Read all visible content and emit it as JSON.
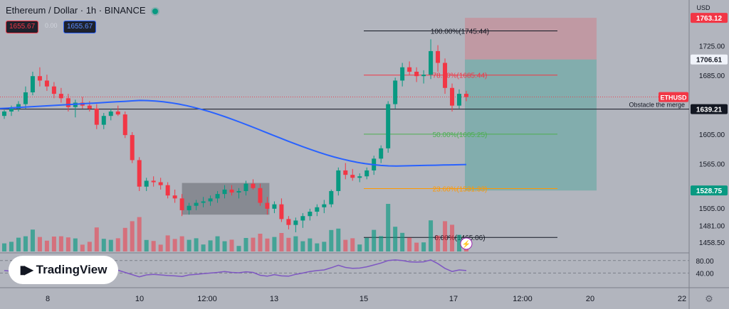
{
  "header": {
    "title": "Ethereum / Dollar · 1h · BINANCE",
    "sell_price": "1655.67",
    "spread": "0.00",
    "buy_price": "1655.67"
  },
  "logo": {
    "text": "TradingView",
    "mark": "TV"
  },
  "currency_label": "USD",
  "symbol_tag": "ETHUSD",
  "price_scale_labels": [
    "1725.00",
    "1685.00",
    "1605.00",
    "1565.00",
    "1505.00",
    "1481.00",
    "1458.50"
  ],
  "price_badges": [
    {
      "text": "1763.12",
      "value": 1763.12,
      "bg": "#f23645",
      "color": "#ffffff"
    },
    {
      "text": "1706.61",
      "value": 1706.61,
      "bg": "#f0f3fa",
      "color": "#131722"
    },
    {
      "text": "1639.21",
      "value": 1639.21,
      "bg": "#131722",
      "color": "#ffffff"
    },
    {
      "text": "1528.75",
      "value": 1528.75,
      "bg": "#089981",
      "color": "#ffffff"
    }
  ],
  "annotations": [
    {
      "text": "Obstacle the merge",
      "value": 1639.21
    }
  ],
  "rsi_scale_labels": [
    "80.00",
    "40.00"
  ],
  "time_labels": [
    "8",
    "10",
    "12:00",
    "13",
    "15",
    "17",
    "12:00",
    "20",
    "22"
  ],
  "colors": {
    "background": "#b2b5be",
    "up": "#089981",
    "down": "#f23645",
    "ma": "#2962ff",
    "rsi": "#7e57c2"
  },
  "chart_data": {
    "type": "candlestick",
    "title": "Ethereum / Dollar · 1h · BINANCE",
    "symbol": "ETHUSD",
    "price_range": [
      1446,
      1770
    ],
    "current_price": 1655.67,
    "candles": [
      [
        1630,
        1638,
        1626,
        1636
      ],
      [
        1636,
        1644,
        1630,
        1640
      ],
      [
        1640,
        1650,
        1636,
        1646
      ],
      [
        1646,
        1670,
        1640,
        1662
      ],
      [
        1662,
        1690,
        1658,
        1684
      ],
      [
        1684,
        1696,
        1670,
        1678
      ],
      [
        1678,
        1686,
        1664,
        1670
      ],
      [
        1670,
        1676,
        1654,
        1660
      ],
      [
        1660,
        1668,
        1648,
        1654
      ],
      [
        1654,
        1660,
        1636,
        1642
      ],
      [
        1642,
        1652,
        1628,
        1648
      ],
      [
        1648,
        1656,
        1640,
        1644
      ],
      [
        1644,
        1650,
        1636,
        1640
      ],
      [
        1640,
        1646,
        1612,
        1618
      ],
      [
        1618,
        1634,
        1612,
        1630
      ],
      [
        1630,
        1640,
        1624,
        1636
      ],
      [
        1636,
        1644,
        1630,
        1632
      ],
      [
        1632,
        1636,
        1600,
        1604
      ],
      [
        1604,
        1608,
        1566,
        1570
      ],
      [
        1570,
        1574,
        1528,
        1534
      ],
      [
        1534,
        1546,
        1528,
        1542
      ],
      [
        1542,
        1548,
        1534,
        1540
      ],
      [
        1540,
        1546,
        1530,
        1536
      ],
      [
        1536,
        1540,
        1518,
        1522
      ],
      [
        1522,
        1530,
        1512,
        1518
      ],
      [
        1518,
        1524,
        1494,
        1502
      ],
      [
        1502,
        1512,
        1496,
        1508
      ],
      [
        1508,
        1516,
        1502,
        1512
      ],
      [
        1512,
        1520,
        1506,
        1514
      ],
      [
        1514,
        1522,
        1508,
        1518
      ],
      [
        1518,
        1528,
        1512,
        1524
      ],
      [
        1524,
        1536,
        1518,
        1530
      ],
      [
        1530,
        1536,
        1522,
        1526
      ],
      [
        1526,
        1532,
        1518,
        1528
      ],
      [
        1528,
        1542,
        1522,
        1538
      ],
      [
        1538,
        1544,
        1530,
        1532
      ],
      [
        1532,
        1538,
        1508,
        1512
      ],
      [
        1512,
        1520,
        1496,
        1504
      ],
      [
        1504,
        1514,
        1498,
        1510
      ],
      [
        1510,
        1518,
        1486,
        1490
      ],
      [
        1490,
        1494,
        1476,
        1482
      ],
      [
        1482,
        1492,
        1472,
        1488
      ],
      [
        1488,
        1498,
        1478,
        1494
      ],
      [
        1494,
        1504,
        1488,
        1500
      ],
      [
        1500,
        1510,
        1494,
        1506
      ],
      [
        1506,
        1516,
        1498,
        1510
      ],
      [
        1510,
        1530,
        1506,
        1528
      ],
      [
        1528,
        1560,
        1522,
        1556
      ],
      [
        1556,
        1566,
        1544,
        1550
      ],
      [
        1550,
        1558,
        1542,
        1546
      ],
      [
        1546,
        1552,
        1540,
        1548
      ],
      [
        1548,
        1560,
        1544,
        1556
      ],
      [
        1556,
        1576,
        1550,
        1572
      ],
      [
        1572,
        1590,
        1566,
        1586
      ],
      [
        1586,
        1650,
        1580,
        1646
      ],
      [
        1646,
        1682,
        1640,
        1678
      ],
      [
        1678,
        1702,
        1670,
        1696
      ],
      [
        1696,
        1704,
        1686,
        1690
      ],
      [
        1690,
        1696,
        1676,
        1684
      ],
      [
        1684,
        1692,
        1674,
        1686
      ],
      [
        1686,
        1734,
        1680,
        1718
      ],
      [
        1718,
        1726,
        1690,
        1702
      ],
      [
        1702,
        1708,
        1660,
        1668
      ],
      [
        1668,
        1674,
        1636,
        1644
      ],
      [
        1644,
        1666,
        1640,
        1660
      ],
      [
        1660,
        1664,
        1650,
        1655.67
      ]
    ],
    "moving_average": {
      "start": 1640,
      "peak": 1651,
      "trough": 1562,
      "end": 1564
    },
    "fibonacci": [
      {
        "label": "100.00%(1745.44)",
        "value": 1745.44,
        "color": "#131722"
      },
      {
        "label": "78.60%(1685.44)",
        "value": 1685.44,
        "color": "#f23645"
      },
      {
        "label": "50.00%(1605.25)",
        "value": 1605.25,
        "color": "#4caf50"
      },
      {
        "label": "23.60%(1531.33)",
        "value": 1531.33,
        "color": "#ff9800"
      },
      {
        "label": "0.00%(1465.06)",
        "value": 1465.06,
        "color": "#131722"
      }
    ],
    "position": {
      "stop": 1763.12,
      "entry": 1706.61,
      "target": 1528.75
    },
    "consolidation_box": {
      "high": 1539,
      "low": 1496
    },
    "rsi": {
      "levels": [
        80,
        40
      ],
      "values": [
        48,
        46,
        50,
        55,
        60,
        58,
        54,
        52,
        50,
        47,
        50,
        49,
        48,
        44,
        47,
        50,
        49,
        42,
        35,
        28,
        34,
        36,
        34,
        32,
        31,
        29,
        34,
        36,
        38,
        40,
        42,
        45,
        42,
        41,
        44,
        42,
        33,
        30,
        35,
        31,
        30,
        36,
        40,
        45,
        48,
        50,
        57,
        65,
        58,
        55,
        56,
        60,
        66,
        72,
        80,
        82,
        80,
        76,
        75,
        76,
        82,
        70,
        55,
        45,
        50,
        48
      ]
    },
    "ylabel": "USD"
  }
}
